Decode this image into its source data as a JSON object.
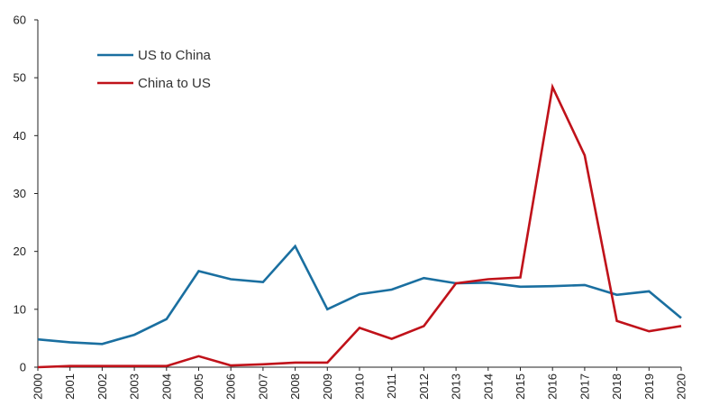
{
  "chart_data": {
    "type": "line",
    "title": "",
    "xlabel": "",
    "ylabel": "",
    "ylim": [
      0,
      60
    ],
    "yticks": [
      0,
      10,
      20,
      30,
      40,
      50,
      60
    ],
    "grid": false,
    "legend_position": "top-left",
    "categories": [
      "2000",
      "2001",
      "2002",
      "2003",
      "2004",
      "2005",
      "2006",
      "2007",
      "2008",
      "2009",
      "2010",
      "2011",
      "2012",
      "2013",
      "2014",
      "2015",
      "2016",
      "2017",
      "2018",
      "2019",
      "2020"
    ],
    "series": [
      {
        "name": "US to China",
        "color": "#1a6fa0",
        "values": [
          4.8,
          4.3,
          4.0,
          5.6,
          8.3,
          16.6,
          15.2,
          14.7,
          20.9,
          10.0,
          12.6,
          13.4,
          15.4,
          14.5,
          14.6,
          13.9,
          14.0,
          14.2,
          12.5,
          13.1,
          8.5
        ]
      },
      {
        "name": "China to US",
        "color": "#c0121a",
        "values": [
          0.0,
          0.2,
          0.2,
          0.2,
          0.2,
          1.9,
          0.3,
          0.5,
          0.8,
          0.8,
          6.8,
          4.9,
          7.1,
          14.5,
          15.2,
          15.5,
          48.4,
          36.6,
          8.0,
          6.2,
          7.1
        ]
      }
    ]
  }
}
